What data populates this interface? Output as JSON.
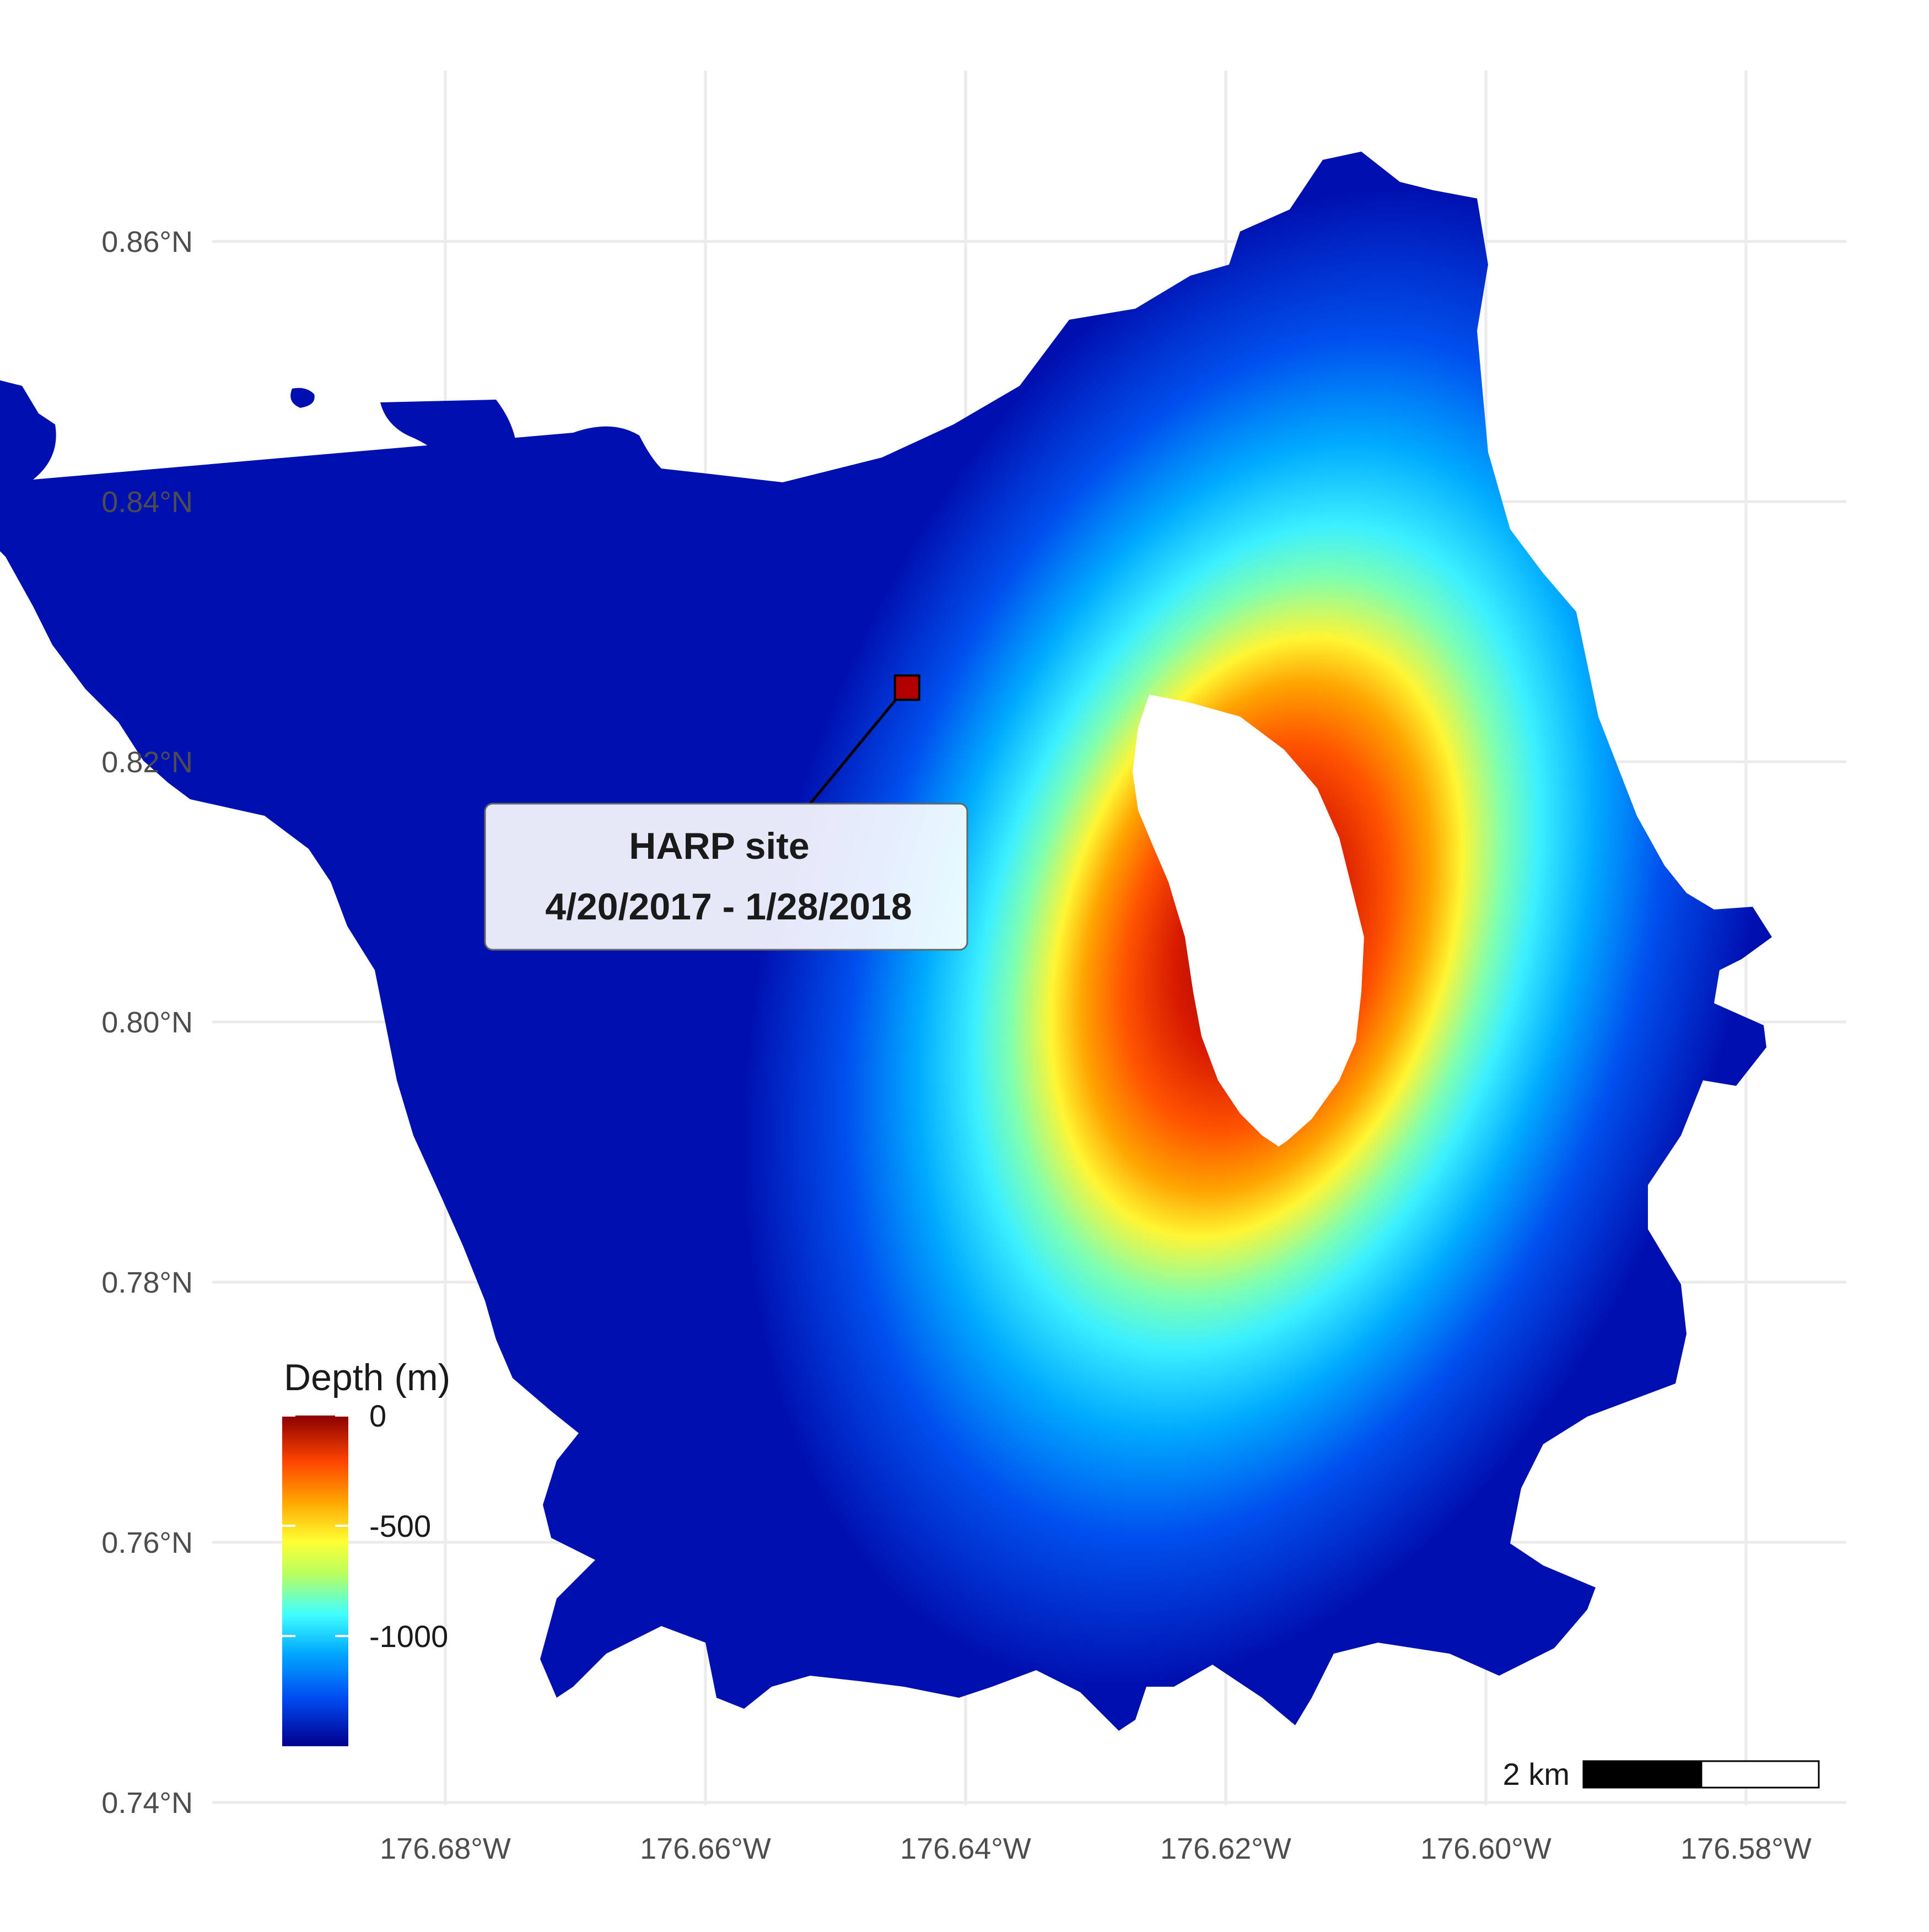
{
  "map": {
    "legend": {
      "title": "Depth (m)",
      "ticks": [
        {
          "value": 0,
          "label": "0"
        },
        {
          "value": -500,
          "label": "-500"
        },
        {
          "value": -1000,
          "label": "-1000"
        }
      ],
      "range": [
        -1500,
        0
      ],
      "colors": [
        "#00008B",
        "#0055FF",
        "#00BFFF",
        "#4DFFFF",
        "#FFFF33",
        "#FFA500",
        "#FF4500",
        "#8B0000"
      ]
    },
    "x_axis": {
      "ticks": [
        "176.68°W",
        "176.66°W",
        "176.64°W",
        "176.62°W",
        "176.60°W",
        "176.58°W"
      ]
    },
    "y_axis": {
      "ticks": [
        "0.86°N",
        "0.84°N",
        "0.82°N",
        "0.80°N",
        "0.78°N",
        "0.76°N",
        "0.74°N"
      ]
    },
    "site": {
      "label_line1": "HARP site",
      "label_line2": "4/20/2017 - 1/28/2018",
      "lon": -176.6445,
      "lat": 0.8257,
      "color": "#B20000"
    },
    "scale_bar": {
      "label": "2 km"
    }
  }
}
